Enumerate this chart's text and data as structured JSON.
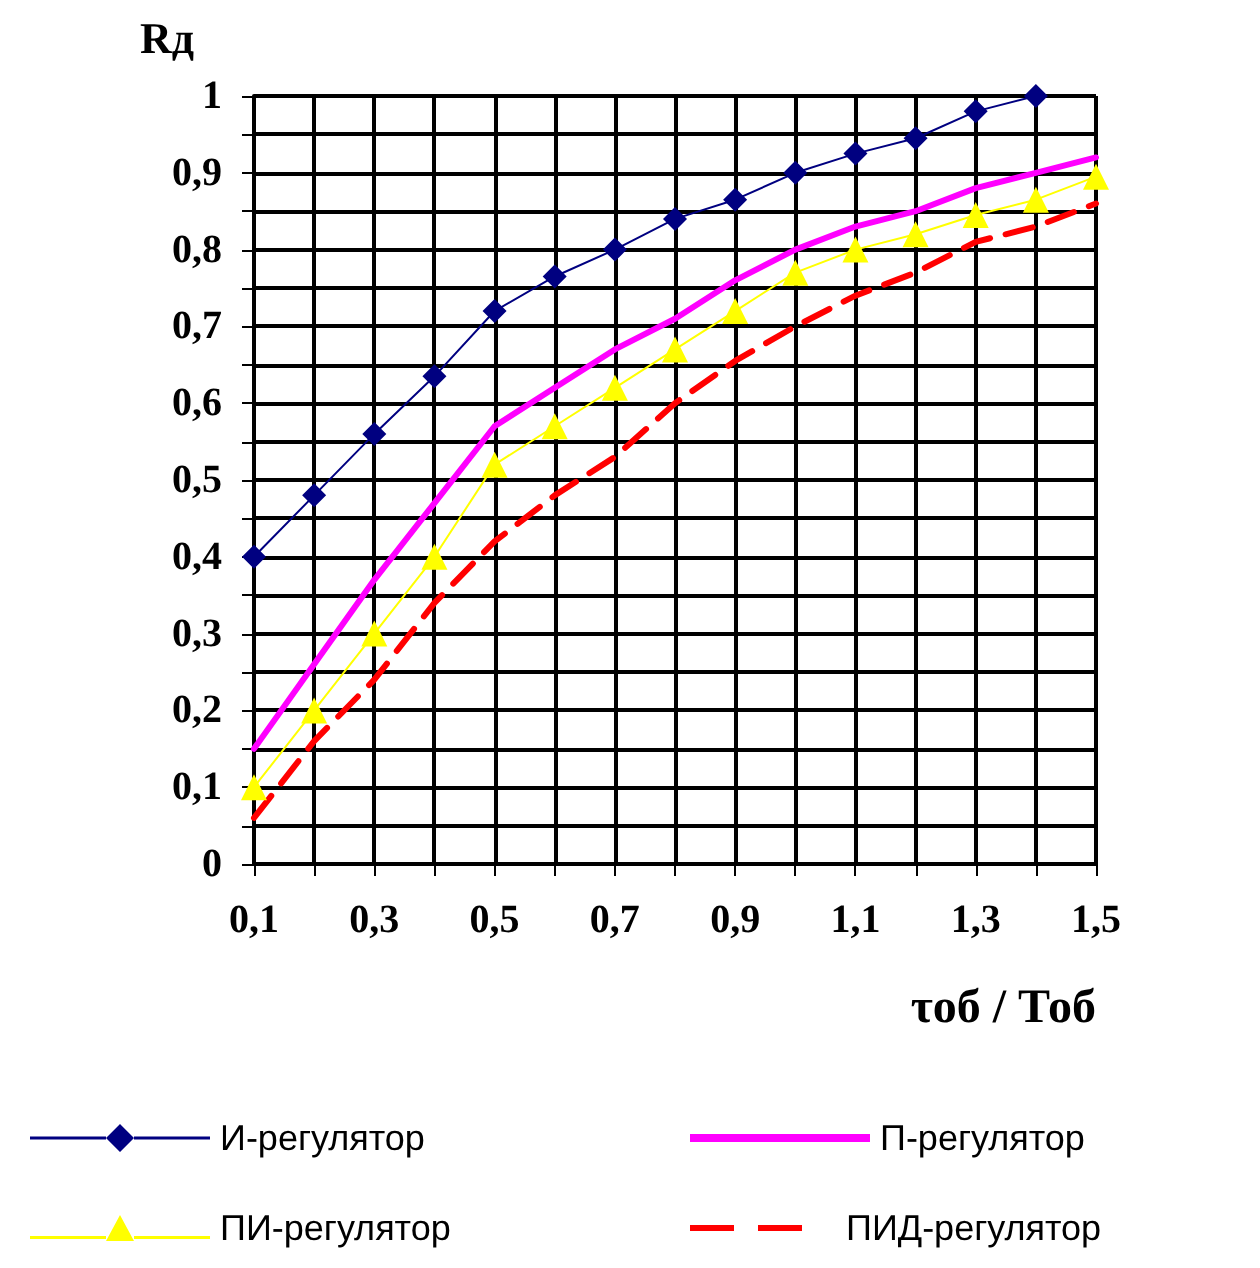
{
  "chart_data": {
    "type": "line",
    "xlabel": "τоб / Тоб",
    "ylabel": "Rд",
    "x": [
      0.1,
      0.2,
      0.3,
      0.4,
      0.5,
      0.6,
      0.7,
      0.8,
      0.9,
      1.0,
      1.1,
      1.2,
      1.3,
      1.4,
      1.5
    ],
    "series": [
      {
        "name": "И-регулятор",
        "color": "#000080",
        "marker": "diamond",
        "line_style": "solid",
        "x": [
          0.1,
          0.2,
          0.3,
          0.4,
          0.5,
          0.6,
          0.7,
          0.8,
          0.9,
          1.0,
          1.1,
          1.2,
          1.3,
          1.4
        ],
        "values": [
          0.4,
          0.48,
          0.56,
          0.635,
          0.72,
          0.765,
          0.8,
          0.84,
          0.865,
          0.9,
          0.925,
          0.945,
          0.98,
          1.0
        ]
      },
      {
        "name": "П-регулятор",
        "color": "#ff00ff",
        "marker": "none",
        "line_style": "solid",
        "values": [
          0.15,
          0.26,
          0.37,
          0.47,
          0.57,
          0.62,
          0.67,
          0.71,
          0.76,
          0.8,
          0.83,
          0.85,
          0.88,
          0.9,
          0.92
        ]
      },
      {
        "name": "ПИ-регулятор",
        "color": "#ffff00",
        "marker": "triangle",
        "line_style": "solid",
        "values": [
          0.1,
          0.2,
          0.3,
          0.4,
          0.52,
          0.57,
          0.62,
          0.67,
          0.72,
          0.77,
          0.8,
          0.82,
          0.845,
          0.865,
          0.895
        ]
      },
      {
        "name": "ПИД-регулятор",
        "color": "#ff0000",
        "marker": "none",
        "line_style": "dashed",
        "values": [
          0.06,
          0.16,
          0.24,
          0.34,
          0.42,
          0.48,
          0.53,
          0.6,
          0.655,
          0.7,
          0.74,
          0.77,
          0.81,
          0.83,
          0.86
        ]
      }
    ],
    "xlim": [
      0.1,
      1.5
    ],
    "xticks": [
      {
        "value": 0.1,
        "label": "0,1"
      },
      {
        "value": 0.2,
        "label": null
      },
      {
        "value": 0.3,
        "label": "0,3"
      },
      {
        "value": 0.4,
        "label": null
      },
      {
        "value": 0.5,
        "label": "0,5"
      },
      {
        "value": 0.6,
        "label": null
      },
      {
        "value": 0.7,
        "label": "0,7"
      },
      {
        "value": 0.8,
        "label": null
      },
      {
        "value": 0.9,
        "label": "0,9"
      },
      {
        "value": 1.0,
        "label": null
      },
      {
        "value": 1.1,
        "label": "1,1"
      },
      {
        "value": 1.2,
        "label": null
      },
      {
        "value": 1.3,
        "label": "1,3"
      },
      {
        "value": 1.4,
        "label": null
      },
      {
        "value": 1.5,
        "label": "1,5"
      }
    ],
    "ylim": [
      0,
      1
    ],
    "yticks": [
      0,
      {
        "value": 0.05,
        "label": null
      },
      {
        "value": 0.1,
        "label": "0,1"
      },
      {
        "value": 0.15,
        "label": null
      },
      {
        "value": 0.2,
        "label": "0,2"
      },
      {
        "value": 0.25,
        "label": null
      },
      {
        "value": 0.3,
        "label": "0,3"
      },
      {
        "value": 0.35,
        "label": null
      },
      {
        "value": 0.4,
        "label": "0,4"
      },
      {
        "value": 0.45,
        "label": null
      },
      {
        "value": 0.5,
        "label": "0,5"
      },
      {
        "value": 0.55,
        "label": null
      },
      {
        "value": 0.6,
        "label": "0,6"
      },
      {
        "value": 0.65,
        "label": null
      },
      {
        "value": 0.7,
        "label": "0,7"
      },
      {
        "value": 0.75,
        "label": null
      },
      {
        "value": 0.8,
        "label": "0,8"
      },
      {
        "value": 0.85,
        "label": null
      },
      {
        "value": 0.9,
        "label": "0,9"
      },
      {
        "value": 0.95,
        "label": null
      },
      1
    ],
    "grid": true,
    "legend": "bottom"
  }
}
